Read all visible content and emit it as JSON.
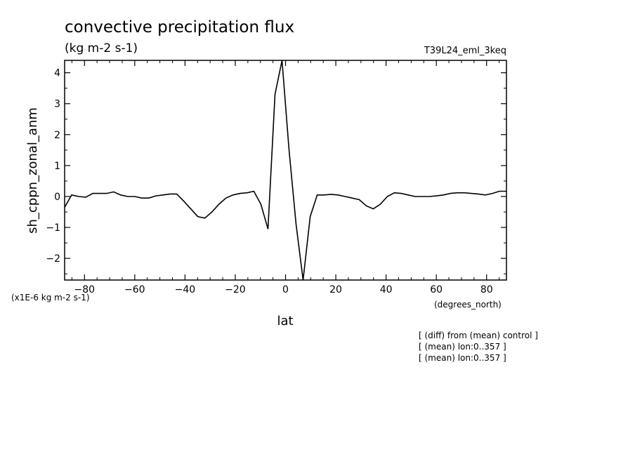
{
  "chart_data": {
    "type": "line",
    "title": "convective precipitation flux",
    "subtitle": "(kg m-2 s-1)",
    "run_label": "T39L24_eml_3keq",
    "xlabel": "lat",
    "xunits": "(degrees_north)",
    "ylabel": "sh_cppn_zonal_anm",
    "yunits": "(x1E-6 kg m-2 s-1)",
    "xlim": [
      -87.9,
      87.9
    ],
    "ylim": [
      -2.7,
      4.4
    ],
    "xticks": [
      -80,
      -60,
      -40,
      -20,
      0,
      20,
      40,
      60,
      80
    ],
    "xtick_labels": [
      "−80",
      "−60",
      "−40",
      "−20",
      "0",
      "20",
      "40",
      "60",
      "80"
    ],
    "yticks": [
      -2,
      -1,
      0,
      1,
      2,
      3,
      4
    ],
    "ytick_labels": [
      "−2",
      "−1",
      "0",
      "1",
      "2",
      "3",
      "4"
    ],
    "grid": false,
    "series": [
      {
        "x": [
          -87.9,
          -85.1,
          -82.3,
          -79.5,
          -76.7,
          -73.9,
          -71.2,
          -68.4,
          -65.6,
          -62.8,
          -60.0,
          -57.2,
          -54.4,
          -51.6,
          -48.8,
          -46.0,
          -43.3,
          -40.5,
          -37.7,
          -34.9,
          -32.1,
          -29.3,
          -26.5,
          -23.7,
          -20.9,
          -18.1,
          -15.3,
          -12.6,
          -9.8,
          -7.0,
          -4.2,
          -1.4,
          1.4,
          4.2,
          7.0,
          9.8,
          12.6,
          15.3,
          18.1,
          20.9,
          23.7,
          26.5,
          29.3,
          32.1,
          34.9,
          37.7,
          40.5,
          43.3,
          46.0,
          48.8,
          51.6,
          54.4,
          57.2,
          60.0,
          62.8,
          65.6,
          68.4,
          71.2,
          73.9,
          76.7,
          79.5,
          82.3,
          85.1,
          87.9
        ],
        "values": [
          -0.35,
          0.05,
          0.0,
          -0.02,
          0.1,
          0.1,
          0.1,
          0.15,
          0.05,
          0.0,
          0.0,
          -0.05,
          -0.05,
          0.02,
          0.05,
          0.08,
          0.08,
          -0.15,
          -0.4,
          -0.65,
          -0.7,
          -0.5,
          -0.25,
          -0.05,
          0.05,
          0.1,
          0.12,
          0.17,
          -0.25,
          -1.05,
          3.3,
          4.4,
          1.5,
          -0.9,
          -2.7,
          -0.65,
          0.05,
          0.05,
          0.07,
          0.05,
          0.0,
          -0.05,
          -0.1,
          -0.3,
          -0.4,
          -0.25,
          0.0,
          0.12,
          0.1,
          0.05,
          0.0,
          0.0,
          0.0,
          0.02,
          0.05,
          0.1,
          0.12,
          0.12,
          0.1,
          0.08,
          0.05,
          0.1,
          0.17,
          0.17
        ]
      }
    ]
  },
  "notes": [
    "[ (diff) from (mean) control ]",
    "[ (mean) lon:0..357 ]",
    "[ (mean) lon:0..357 ]"
  ]
}
